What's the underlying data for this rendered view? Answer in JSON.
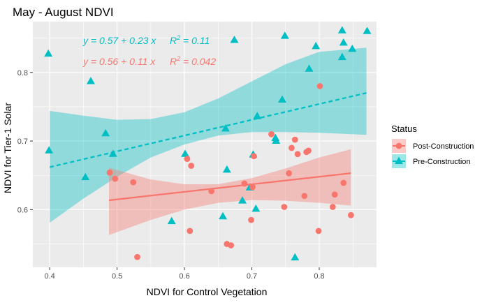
{
  "chart_data": {
    "type": "scatter",
    "title": "May - August NDVI",
    "xlabel": "NDVI for Control Vegetation",
    "ylabel": "NDVI for Tier-1 Solar",
    "xlim": [
      0.375,
      0.885
    ],
    "ylim": [
      0.516,
      0.874
    ],
    "x_ticks": [
      0.4,
      0.5,
      0.6,
      0.7,
      0.8
    ],
    "x_tick_labels": [
      "0.4",
      "0.5",
      "0.6",
      "0.7",
      "0.8"
    ],
    "y_ticks": [
      0.6,
      0.7,
      0.8
    ],
    "y_tick_labels": [
      "0.6",
      "0.7",
      "0.8"
    ],
    "grid": true,
    "background": "#ebebeb",
    "legend": {
      "title": "Status",
      "placement": "right",
      "entries": [
        {
          "label": "Post-Construction",
          "color": "#f8766d",
          "marker": "circle"
        },
        {
          "label": "Pre-Construction",
          "color": "#00bfc4",
          "marker": "triangle"
        }
      ]
    },
    "annotations": [
      {
        "series": "Pre-Construction",
        "color": "#00bfc4",
        "equation": "y = 0.57 + 0.23 x",
        "r2_prefix": "R",
        "r2_exp": "2",
        "r2_value": " = 0.11"
      },
      {
        "series": "Post-Construction",
        "color": "#f8766d",
        "equation": "y = 0.56 + 0.11 x",
        "r2_prefix": "R",
        "r2_exp": "2",
        "r2_value": " = 0.042"
      }
    ],
    "series": [
      {
        "name": "Pre-Construction",
        "color": "#00bfc4",
        "marker": "triangle",
        "fit": {
          "intercept": 0.57,
          "slope": 0.23,
          "x_range": [
            0.4,
            0.87
          ],
          "linestyle": "dashed",
          "band": [
            [
              0.4,
              0.581,
              0.744
            ],
            [
              0.45,
              0.616,
              0.737
            ],
            [
              0.5,
              0.648,
              0.731
            ],
            [
              0.55,
              0.676,
              0.732
            ],
            [
              0.6,
              0.695,
              0.742
            ],
            [
              0.65,
              0.708,
              0.762
            ],
            [
              0.7,
              0.713,
              0.787
            ],
            [
              0.75,
              0.713,
              0.812
            ],
            [
              0.8,
              0.712,
              0.83
            ],
            [
              0.87,
              0.709,
              0.836
            ]
          ]
        },
        "points": [
          [
            0.398,
            0.827
          ],
          [
            0.399,
            0.686
          ],
          [
            0.453,
            0.647
          ],
          [
            0.461,
            0.787
          ],
          [
            0.483,
            0.711
          ],
          [
            0.494,
            0.681
          ],
          [
            0.581,
            0.583
          ],
          [
            0.601,
            0.681
          ],
          [
            0.657,
            0.59
          ],
          [
            0.661,
            0.718
          ],
          [
            0.663,
            0.658
          ],
          [
            0.674,
            0.847
          ],
          [
            0.686,
            0.613
          ],
          [
            0.697,
            0.632
          ],
          [
            0.702,
            0.68
          ],
          [
            0.706,
            0.601
          ],
          [
            0.708,
            0.736
          ],
          [
            0.735,
            0.704
          ],
          [
            0.736,
            0.7
          ],
          [
            0.745,
            0.76
          ],
          [
            0.749,
            0.853
          ],
          [
            0.764,
            0.53
          ],
          [
            0.785,
            0.805
          ],
          [
            0.795,
            0.838
          ],
          [
            0.834,
            0.861
          ],
          [
            0.834,
            0.822
          ],
          [
            0.836,
            0.843
          ],
          [
            0.849,
            0.834
          ],
          [
            0.871,
            0.86
          ]
        ]
      },
      {
        "name": "Post-Construction",
        "color": "#f8766d",
        "marker": "circle",
        "fit": {
          "intercept": 0.56,
          "slope": 0.11,
          "x_range": [
            0.488,
            0.847
          ],
          "linestyle": "solid",
          "band": [
            [
              0.488,
              0.563,
              0.661
            ],
            [
              0.55,
              0.585,
              0.644
            ],
            [
              0.6,
              0.6,
              0.637
            ],
            [
              0.65,
              0.61,
              0.637
            ],
            [
              0.7,
              0.614,
              0.646
            ],
            [
              0.75,
              0.613,
              0.66
            ],
            [
              0.8,
              0.61,
              0.676
            ],
            [
              0.847,
              0.606,
              0.688
            ]
          ]
        },
        "points": [
          [
            0.489,
            0.654
          ],
          [
            0.497,
            0.645
          ],
          [
            0.524,
            0.64
          ],
          [
            0.53,
            0.531
          ],
          [
            0.604,
            0.674
          ],
          [
            0.608,
            0.569
          ],
          [
            0.61,
            0.664
          ],
          [
            0.64,
            0.627
          ],
          [
            0.663,
            0.55
          ],
          [
            0.669,
            0.548
          ],
          [
            0.689,
            0.638
          ],
          [
            0.699,
            0.585
          ],
          [
            0.701,
            0.633
          ],
          [
            0.703,
            0.678
          ],
          [
            0.729,
            0.71
          ],
          [
            0.748,
            0.604
          ],
          [
            0.755,
            0.653
          ],
          [
            0.759,
            0.69
          ],
          [
            0.764,
            0.702
          ],
          [
            0.768,
            0.681
          ],
          [
            0.778,
            0.62
          ],
          [
            0.781,
            0.684
          ],
          [
            0.784,
            0.686
          ],
          [
            0.799,
            0.569
          ],
          [
            0.801,
            0.78
          ],
          [
            0.82,
            0.604
          ],
          [
            0.823,
            0.622
          ],
          [
            0.836,
            0.639
          ],
          [
            0.847,
            0.592
          ]
        ]
      }
    ]
  }
}
